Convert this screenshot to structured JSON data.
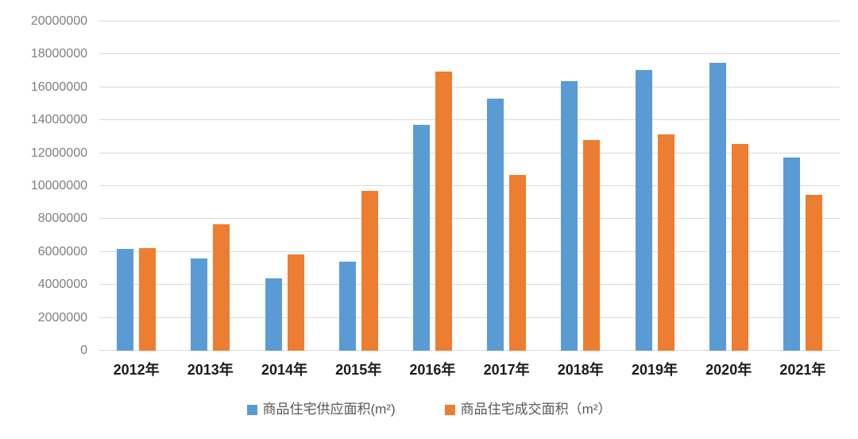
{
  "chart": {
    "background_color": "#ffffff",
    "grid_color": "#d9d9d9",
    "axis_tick_label_color": "#7f7f7f",
    "category_label_color": "#1a1a1a",
    "legend_text_color": "#595959"
  },
  "chart_data": {
    "type": "bar",
    "title": "",
    "categories": [
      "2012年",
      "2013年",
      "2014年",
      "2015年",
      "2016年",
      "2017年",
      "2018年",
      "2019年",
      "2020年",
      "2021年"
    ],
    "series": [
      {
        "name": "商品住宅供应面积(m²)",
        "color": "#5b9bd5",
        "values": [
          6200000,
          5600000,
          4400000,
          5400000,
          13700000,
          15300000,
          16400000,
          17050000,
          17500000,
          11750000
        ]
      },
      {
        "name": "商品住宅成交面积（m²）",
        "color": "#ed7d31",
        "values": [
          6250000,
          7700000,
          5850000,
          9700000,
          16950000,
          10700000,
          12800000,
          13150000,
          12550000,
          9450000
        ]
      }
    ],
    "ylim": [
      0,
      20000000
    ],
    "y_ticks": [
      "0",
      "2000000",
      "4000000",
      "6000000",
      "8000000",
      "10000000",
      "12000000",
      "14000000",
      "16000000",
      "18000000",
      "20000000"
    ],
    "grid": "horizontal",
    "legend_position": "bottom"
  }
}
